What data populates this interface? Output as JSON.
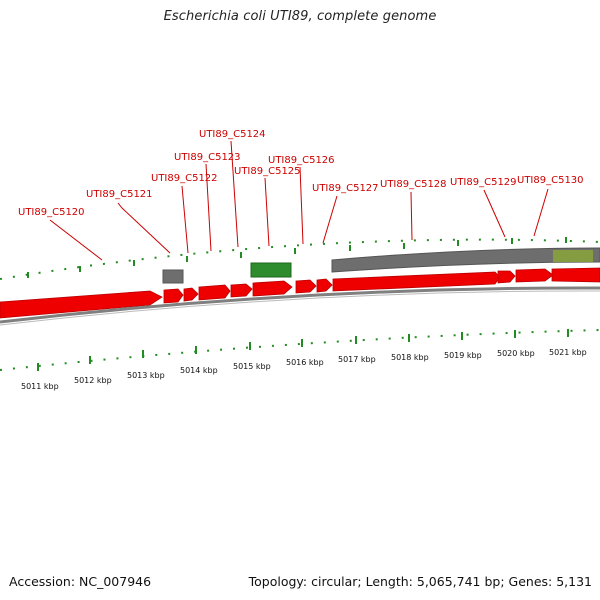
{
  "title": "Escherichia coli UTI89, complete genome",
  "footer": {
    "accession": "Accession: NC_007946",
    "summary": "Topology: circular; Length: 5,065,741 bp; Genes: 5,131"
  },
  "colors": {
    "gene": "#ee0000",
    "label": "#cc0000",
    "tick": "#228b22",
    "backbone": "#808080",
    "gray_feature": "#6e6e6e",
    "green_feature": "#2e8b2e",
    "olive_feature": "#8aa53a"
  },
  "gene_labels": [
    "UTI89_C5120",
    "UTI89_C5121",
    "UTI89_C5122",
    "UTI89_C5123",
    "UTI89_C5124",
    "UTI89_C5125",
    "UTI89_C5126",
    "UTI89_C5127",
    "UTI89_C5128",
    "UTI89_C5129",
    "UTI89_C5130"
  ],
  "kbp_labels": [
    "5011 kbp",
    "5012 kbp",
    "5013 kbp",
    "5014 kbp",
    "5015 kbp",
    "5016 kbp",
    "5017 kbp",
    "5018 kbp",
    "5019 kbp",
    "5020 kbp",
    "5021 kbp"
  ]
}
